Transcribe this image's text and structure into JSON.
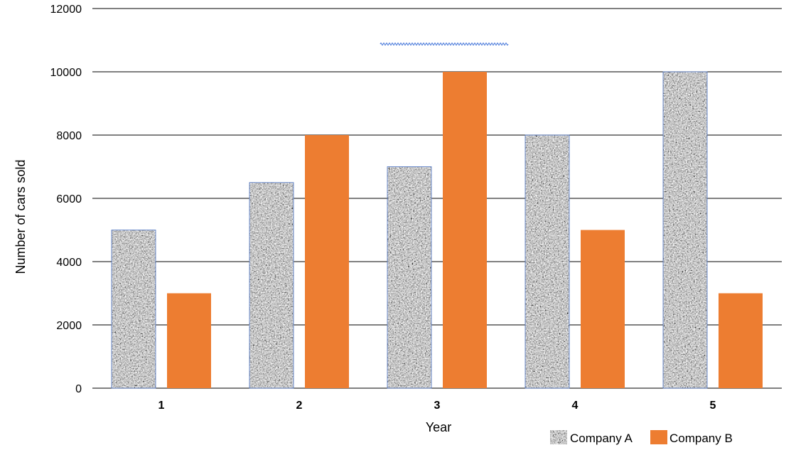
{
  "chart_data": {
    "type": "bar",
    "title": "",
    "xlabel": "Year",
    "ylabel": "Number  of cars sold",
    "categories": [
      "1",
      "2",
      "3",
      "4",
      "5"
    ],
    "ylim": [
      0,
      12000
    ],
    "yticks": [
      0,
      2000,
      4000,
      6000,
      8000,
      10000,
      12000
    ],
    "grid": true,
    "legend_position": "bottom-right",
    "series": [
      {
        "name": "Company A",
        "values": [
          5000,
          6500,
          7000,
          8000,
          10000
        ],
        "color": "#9a9a9a",
        "fill": "granite-texture"
      },
      {
        "name": "Company B",
        "values": [
          3000,
          8000,
          10000,
          5000,
          3000
        ],
        "color": "#ed7d31"
      }
    ]
  }
}
